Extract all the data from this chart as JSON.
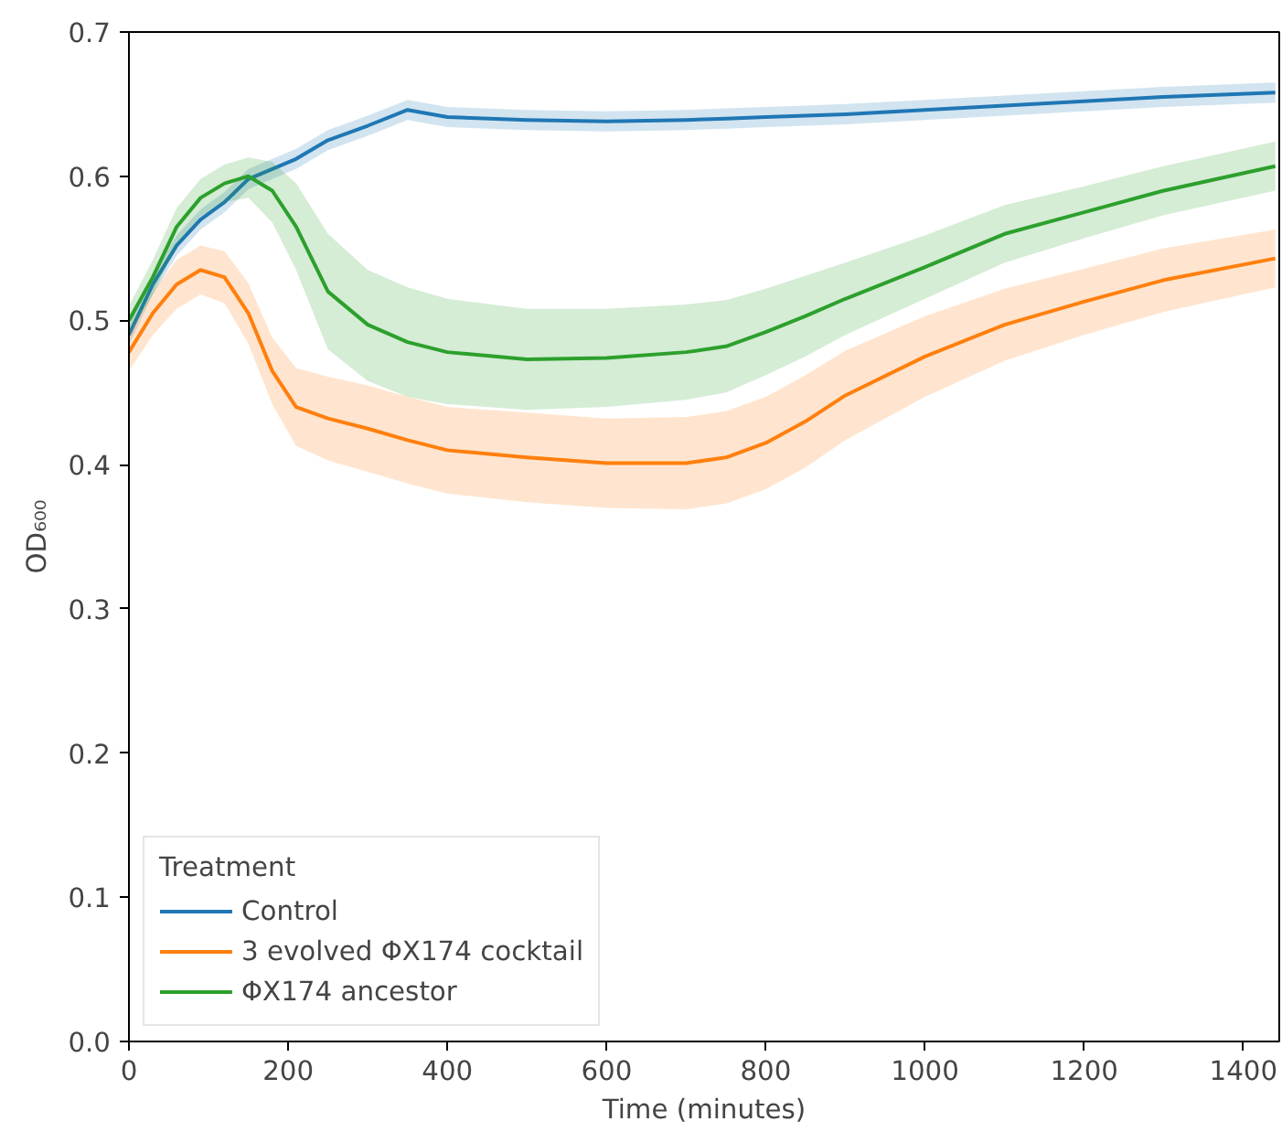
{
  "chart_data": {
    "type": "line",
    "xlabel": "Time (minutes)",
    "ylabel": "OD₆₀₀",
    "legend_title": "Treatment",
    "legend": "bottom left",
    "grid": false,
    "xlim": [
      0,
      1445
    ],
    "xticks": [
      0,
      200,
      400,
      600,
      800,
      1000,
      1200,
      1400
    ],
    "ylim": [
      0,
      0.7
    ],
    "yticks": [
      {
        "value": 0,
        "label": "0.0"
      },
      0.1,
      0.2,
      0.3,
      0.4,
      0.5,
      0.6,
      0.7
    ],
    "x": [
      0,
      30,
      60,
      90,
      120,
      150,
      180,
      210,
      250,
      300,
      350,
      400,
      500,
      600,
      700,
      750,
      800,
      850,
      900,
      1000,
      1100,
      1200,
      1300,
      1440
    ],
    "series": [
      {
        "name": "Control",
        "color": "#1f77b4",
        "values": [
          0.49,
          0.525,
          0.552,
          0.57,
          0.582,
          0.598,
          0.605,
          0.612,
          0.625,
          0.635,
          0.646,
          0.641,
          0.639,
          0.638,
          0.639,
          0.64,
          0.641,
          0.642,
          0.643,
          0.646,
          0.649,
          0.652,
          0.655,
          0.658
        ],
        "lower": [
          0.483,
          0.518,
          0.545,
          0.563,
          0.575,
          0.591,
          0.598,
          0.605,
          0.618,
          0.628,
          0.639,
          0.634,
          0.632,
          0.631,
          0.632,
          0.633,
          0.634,
          0.635,
          0.636,
          0.639,
          0.642,
          0.645,
          0.648,
          0.651
        ],
        "upper": [
          0.497,
          0.532,
          0.559,
          0.577,
          0.589,
          0.605,
          0.612,
          0.619,
          0.632,
          0.642,
          0.653,
          0.648,
          0.646,
          0.645,
          0.646,
          0.647,
          0.648,
          0.649,
          0.65,
          0.653,
          0.656,
          0.659,
          0.662,
          0.665
        ]
      },
      {
        "name": "3 evolved ΦX174 cocktail",
        "color": "#ff7f0e",
        "values": [
          0.478,
          0.505,
          0.525,
          0.535,
          0.53,
          0.505,
          0.465,
          0.44,
          0.432,
          0.425,
          0.417,
          0.41,
          0.405,
          0.401,
          0.401,
          0.405,
          0.415,
          0.43,
          0.448,
          0.475,
          0.497,
          0.513,
          0.528,
          0.543
        ],
        "lower": [
          0.465,
          0.49,
          0.508,
          0.518,
          0.512,
          0.484,
          0.442,
          0.413,
          0.403,
          0.395,
          0.387,
          0.38,
          0.374,
          0.37,
          0.369,
          0.373,
          0.383,
          0.398,
          0.417,
          0.447,
          0.472,
          0.49,
          0.506,
          0.523
        ],
        "upper": [
          0.491,
          0.52,
          0.542,
          0.552,
          0.548,
          0.526,
          0.488,
          0.467,
          0.461,
          0.455,
          0.447,
          0.44,
          0.436,
          0.432,
          0.433,
          0.437,
          0.447,
          0.462,
          0.479,
          0.503,
          0.522,
          0.536,
          0.55,
          0.563
        ]
      },
      {
        "name": "ΦX174 ancestor",
        "color": "#2ca02c",
        "values": [
          0.5,
          0.53,
          0.565,
          0.585,
          0.595,
          0.6,
          0.59,
          0.565,
          0.52,
          0.497,
          0.485,
          0.478,
          0.473,
          0.474,
          0.478,
          0.482,
          0.492,
          0.503,
          0.515,
          0.537,
          0.56,
          0.575,
          0.59,
          0.607
        ],
        "lower": [
          0.49,
          0.518,
          0.552,
          0.572,
          0.582,
          0.585,
          0.568,
          0.535,
          0.48,
          0.458,
          0.447,
          0.442,
          0.438,
          0.44,
          0.445,
          0.45,
          0.462,
          0.475,
          0.49,
          0.515,
          0.54,
          0.557,
          0.573,
          0.59
        ],
        "upper": [
          0.51,
          0.542,
          0.578,
          0.598,
          0.608,
          0.613,
          0.61,
          0.595,
          0.56,
          0.535,
          0.523,
          0.515,
          0.508,
          0.508,
          0.511,
          0.514,
          0.522,
          0.531,
          0.54,
          0.559,
          0.58,
          0.593,
          0.607,
          0.624
        ]
      }
    ]
  }
}
